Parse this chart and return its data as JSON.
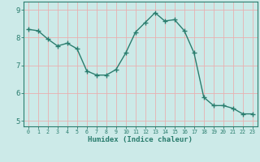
{
  "x": [
    0,
    1,
    2,
    3,
    4,
    5,
    6,
    7,
    8,
    9,
    10,
    11,
    12,
    13,
    14,
    15,
    16,
    17,
    18,
    19,
    20,
    21,
    22,
    23
  ],
  "y": [
    8.3,
    8.25,
    7.95,
    7.7,
    7.8,
    7.6,
    6.8,
    6.65,
    6.65,
    6.85,
    7.45,
    8.2,
    8.55,
    8.9,
    8.6,
    8.65,
    8.25,
    7.45,
    5.85,
    5.55,
    5.55,
    5.45,
    5.25,
    5.25
  ],
  "xlabel": "Humidex (Indice chaleur)",
  "line_color": "#2a7d6e",
  "marker_color": "#2a7d6e",
  "bg_color": "#cceae8",
  "grid_color": "#e8b0b0",
  "axis_color": "#2a7d6e",
  "tick_color": "#2a7d6e",
  "ylim": [
    4.8,
    9.3
  ],
  "xlim": [
    -0.5,
    23.5
  ],
  "yticks": [
    5,
    6,
    7,
    8,
    9
  ],
  "xticks": [
    0,
    1,
    2,
    3,
    4,
    5,
    6,
    7,
    8,
    9,
    10,
    11,
    12,
    13,
    14,
    15,
    16,
    17,
    18,
    19,
    20,
    21,
    22,
    23
  ]
}
